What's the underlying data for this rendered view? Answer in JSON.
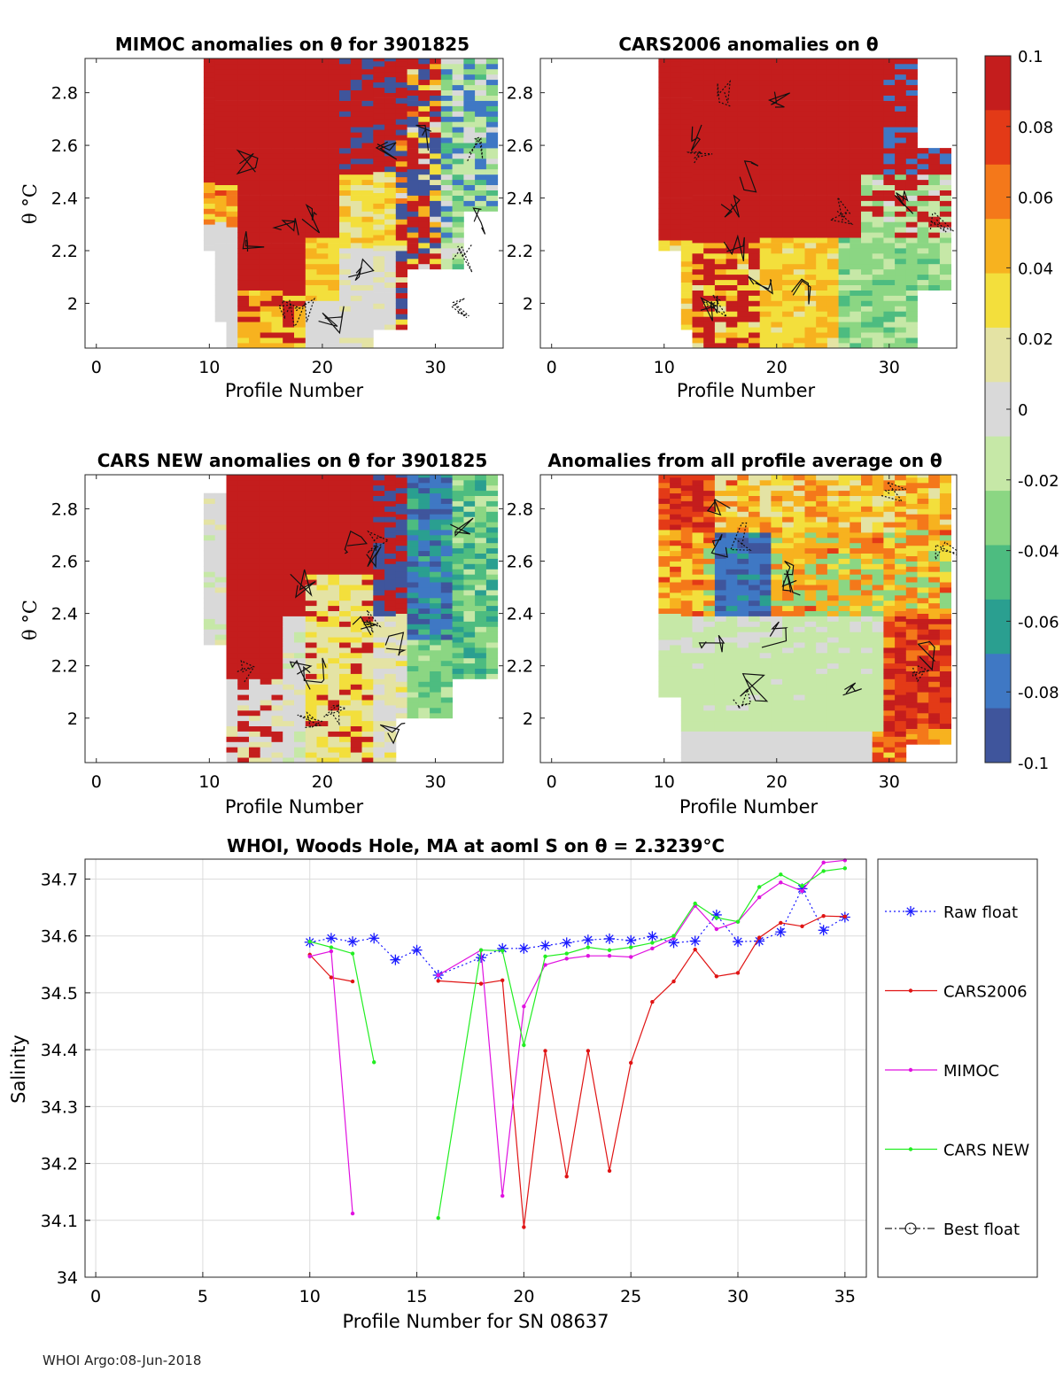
{
  "page": {
    "footer": "WHOI Argo:08-Jun-2018"
  },
  "colorbar": {
    "clim": [
      -0.1,
      0.1
    ],
    "ticks": [
      "0.1",
      "0.08",
      "0.06",
      "0.04",
      "0.02",
      "0",
      "-0.02",
      "-0.04",
      "-0.06",
      "-0.08",
      "-0.1"
    ],
    "colors": [
      "#c41d1d",
      "#e33a17",
      "#f4781a",
      "#f7b21f",
      "#f3df3c",
      "#e4e3a4",
      "#d9d9d9",
      "#c6e8a7",
      "#8bd683",
      "#4dbc80",
      "#2a9f90",
      "#3f78c4",
      "#3f559c"
    ]
  },
  "chart_data": [
    {
      "type": "heatmap",
      "panel": "mimoc",
      "title": "MIMOC anomalies on θ  for 3901825",
      "xlabel": "Profile Number",
      "ylabel": "θ °C",
      "xlim": [
        -1,
        36
      ],
      "ylim": [
        1.83,
        2.93
      ],
      "xticks": [
        0,
        10,
        20,
        30
      ],
      "yticks": [
        2,
        2.2,
        2.4,
        2.6,
        2.8
      ],
      "coverage": {
        "first_profile": 10,
        "last_profile": 35,
        "min_theta": 1.83,
        "max_theta": 2.93
      },
      "pattern": "mimoc",
      "seed": 11
    },
    {
      "type": "heatmap",
      "panel": "cars2006",
      "title": "CARS2006 anomalies on θ",
      "xlabel": "Profile Number",
      "ylabel": "",
      "xlim": [
        -1,
        36
      ],
      "ylim": [
        1.83,
        2.93
      ],
      "xticks": [
        0,
        10,
        20,
        30
      ],
      "yticks": [
        2,
        2.2,
        2.4,
        2.6,
        2.8
      ],
      "coverage": {
        "first_profile": 10,
        "last_profile": 35,
        "min_theta": 1.83,
        "max_theta": 2.93
      },
      "pattern": "cars2006",
      "seed": 23
    },
    {
      "type": "heatmap",
      "panel": "carsnew",
      "title": "CARS NEW anomalies on θ for 3901825",
      "xlabel": "Profile Number",
      "ylabel": "θ °C",
      "xlim": [
        -1,
        36
      ],
      "ylim": [
        1.83,
        2.93
      ],
      "xticks": [
        0,
        10,
        20,
        30
      ],
      "yticks": [
        2,
        2.2,
        2.4,
        2.6,
        2.8
      ],
      "coverage": {
        "first_profile": 10,
        "last_profile": 35,
        "min_theta": 1.83,
        "max_theta": 2.93
      },
      "pattern": "carsnew",
      "seed": 37
    },
    {
      "type": "heatmap",
      "panel": "average",
      "title": "Anomalies from all profile average on θ",
      "xlabel": "Profile Number",
      "ylabel": "",
      "xlim": [
        -1,
        36
      ],
      "ylim": [
        1.83,
        2.93
      ],
      "xticks": [
        0,
        10,
        20,
        30
      ],
      "yticks": [
        2,
        2.2,
        2.4,
        2.6,
        2.8
      ],
      "coverage": {
        "first_profile": 10,
        "last_profile": 35,
        "min_theta": 1.83,
        "max_theta": 2.93
      },
      "pattern": "average",
      "seed": 53
    },
    {
      "type": "line",
      "panel": "salinity",
      "title": "WHOI, Woods Hole, MA at aoml S on θ = 2.3239°C",
      "xlabel": "Profile Number for SN 08637",
      "ylabel": "Salinity",
      "xlim": [
        -0.5,
        36
      ],
      "ylim": [
        34,
        34.735
      ],
      "xticks": [
        0,
        5,
        10,
        15,
        20,
        25,
        30,
        35
      ],
      "yticks": [
        34,
        34.1,
        34.2,
        34.3,
        34.4,
        34.5,
        34.6,
        34.7
      ],
      "ytick_labels": [
        "34",
        "34.1",
        "34.2",
        "34.3",
        "34.4",
        "34.5",
        "34.6",
        "34.7"
      ],
      "series": [
        {
          "name": "Raw float",
          "color": "#1a1aff",
          "style": "dotted",
          "marker": "star",
          "points": [
            [
              10,
              34.589
            ],
            [
              11,
              34.596
            ],
            [
              12,
              34.59
            ],
            [
              13,
              34.596
            ],
            [
              14,
              34.558
            ],
            [
              15,
              34.575
            ],
            [
              16,
              34.531
            ],
            [
              18,
              34.562
            ],
            [
              19,
              34.578
            ],
            [
              20,
              34.578
            ],
            [
              21,
              34.583
            ],
            [
              22,
              34.588
            ],
            [
              23,
              34.593
            ],
            [
              24,
              34.595
            ],
            [
              25,
              34.592
            ],
            [
              26,
              34.599
            ],
            [
              27,
              34.588
            ],
            [
              28,
              34.591
            ],
            [
              29,
              34.637
            ],
            [
              30,
              34.59
            ],
            [
              31,
              34.591
            ],
            [
              32,
              34.607
            ],
            [
              33,
              34.683
            ],
            [
              34,
              34.61
            ],
            [
              35,
              34.633
            ]
          ]
        },
        {
          "name": "CARS2006",
          "color": "#e01414",
          "style": "solid",
          "marker": "dot",
          "segments": [
            [
              [
                10,
                34.567
              ],
              [
                11,
                34.527
              ],
              [
                12,
                34.52
              ]
            ],
            [
              [
                16,
                34.521
              ],
              [
                18,
                34.516
              ],
              [
                19,
                34.522
              ],
              [
                20,
                34.088
              ],
              [
                21,
                34.398
              ],
              [
                22,
                34.177
              ],
              [
                23,
                34.398
              ],
              [
                24,
                34.187
              ],
              [
                25,
                34.377
              ],
              [
                26,
                34.484
              ],
              [
                27,
                34.52
              ],
              [
                28,
                34.576
              ],
              [
                29,
                34.529
              ],
              [
                30,
                34.535
              ],
              [
                31,
                34.597
              ],
              [
                32,
                34.623
              ],
              [
                33,
                34.617
              ],
              [
                34,
                34.635
              ],
              [
                35,
                34.634
              ]
            ]
          ]
        },
        {
          "name": "MIMOC",
          "color": "#e012e0",
          "style": "solid",
          "marker": "dot",
          "segments": [
            [
              [
                10,
                34.564
              ],
              [
                11,
                34.573
              ],
              [
                12,
                34.112
              ]
            ],
            [
              [
                16,
                34.531
              ],
              [
                18,
                34.575
              ],
              [
                19,
                34.143
              ],
              [
                20,
                34.476
              ],
              [
                21,
                34.549
              ],
              [
                22,
                34.56
              ],
              [
                23,
                34.565
              ],
              [
                24,
                34.565
              ],
              [
                25,
                34.563
              ],
              [
                26,
                34.578
              ],
              [
                27,
                34.596
              ],
              [
                28,
                34.653
              ],
              [
                29,
                34.612
              ],
              [
                30,
                34.625
              ],
              [
                31,
                34.668
              ],
              [
                32,
                34.694
              ],
              [
                33,
                34.679
              ],
              [
                34,
                34.729
              ],
              [
                35,
                34.733
              ]
            ]
          ]
        },
        {
          "name": "CARS NEW",
          "color": "#22ee22",
          "style": "solid",
          "marker": "dot",
          "segments": [
            [
              [
                10,
                34.59
              ],
              [
                11,
                34.58
              ],
              [
                12,
                34.569
              ],
              [
                13,
                34.378
              ]
            ],
            [
              [
                16,
                34.104
              ],
              [
                18,
                34.575
              ],
              [
                19,
                34.574
              ],
              [
                20,
                34.408
              ],
              [
                21,
                34.564
              ],
              [
                22,
                34.569
              ],
              [
                23,
                34.58
              ],
              [
                24,
                34.575
              ],
              [
                25,
                34.58
              ],
              [
                26,
                34.588
              ],
              [
                27,
                34.6
              ],
              [
                28,
                34.657
              ],
              [
                29,
                34.632
              ],
              [
                30,
                34.625
              ],
              [
                31,
                34.686
              ],
              [
                32,
                34.708
              ],
              [
                33,
                34.688
              ],
              [
                34,
                34.714
              ],
              [
                35,
                34.719
              ]
            ]
          ]
        },
        {
          "name": "Best float",
          "color": "#222222",
          "style": "dashdot",
          "marker": "circle",
          "points": []
        }
      ]
    }
  ]
}
